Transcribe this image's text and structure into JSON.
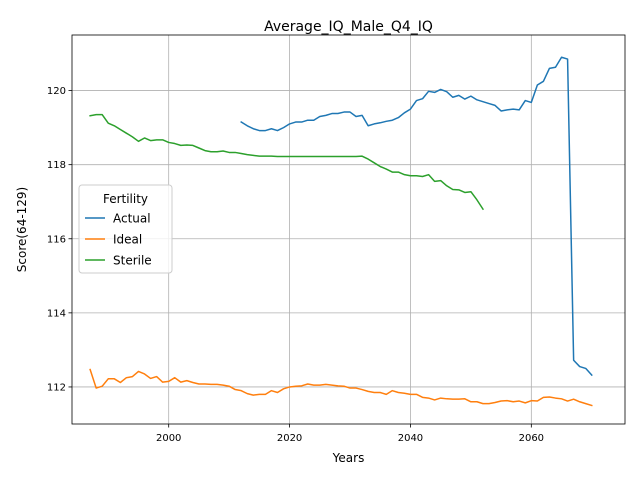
{
  "chart_data": {
    "type": "line",
    "title": "Average_IQ_Male_Q4_IQ",
    "xlabel": "Years",
    "ylabel": "Score(64-129)",
    "xlim": [
      1984,
      2075.5
    ],
    "ylim": [
      111.0,
      121.5
    ],
    "x_ticks": [
      2000,
      2020,
      2040,
      2060
    ],
    "y_ticks": [
      112,
      114,
      116,
      118,
      120
    ],
    "grid": true,
    "legend": {
      "title": "Fertility",
      "placement": "center-left"
    },
    "series": [
      {
        "name": "Actual",
        "color": "#1f77b4",
        "x": [
          2012,
          2013,
          2014,
          2015,
          2016,
          2017,
          2018,
          2019,
          2020,
          2021,
          2022,
          2023,
          2024,
          2025,
          2026,
          2027,
          2028,
          2029,
          2030,
          2031,
          2032,
          2033,
          2034,
          2035,
          2036,
          2037,
          2038,
          2039,
          2040,
          2041,
          2042,
          2043,
          2044,
          2045,
          2046,
          2047,
          2048,
          2049,
          2050,
          2051,
          2052,
          2053,
          2054,
          2055,
          2056,
          2057,
          2058,
          2059,
          2060,
          2061,
          2062,
          2063,
          2064,
          2065,
          2066,
          2067,
          2068,
          2069,
          2070
        ],
        "y": [
          119.15,
          119.05,
          118.97,
          118.92,
          118.92,
          118.97,
          118.92,
          119.0,
          119.1,
          119.15,
          119.15,
          119.2,
          119.2,
          119.3,
          119.33,
          119.38,
          119.38,
          119.42,
          119.42,
          119.3,
          119.33,
          119.05,
          119.1,
          119.13,
          119.17,
          119.2,
          119.27,
          119.4,
          119.5,
          119.73,
          119.78,
          119.98,
          119.95,
          120.03,
          119.97,
          119.82,
          119.87,
          119.77,
          119.85,
          119.75,
          119.7,
          119.65,
          119.6,
          119.45,
          119.48,
          119.5,
          119.48,
          119.73,
          119.68,
          120.15,
          120.25,
          120.6,
          120.63,
          120.9,
          120.85,
          112.72,
          112.55,
          112.5,
          112.32
        ]
      },
      {
        "name": "Ideal",
        "color": "#ff7f0e",
        "x": [
          1987,
          1988,
          1989,
          1990,
          1991,
          1992,
          1993,
          1994,
          1995,
          1996,
          1997,
          1998,
          1999,
          2000,
          2001,
          2002,
          2003,
          2004,
          2005,
          2006,
          2007,
          2008,
          2009,
          2010,
          2011,
          2012,
          2013,
          2014,
          2015,
          2016,
          2017,
          2018,
          2019,
          2020,
          2021,
          2022,
          2023,
          2024,
          2025,
          2026,
          2027,
          2028,
          2029,
          2030,
          2031,
          2032,
          2033,
          2034,
          2035,
          2036,
          2037,
          2038,
          2039,
          2040,
          2041,
          2042,
          2043,
          2044,
          2045,
          2046,
          2047,
          2048,
          2049,
          2050,
          2051,
          2052,
          2053,
          2054,
          2055,
          2056,
          2057,
          2058,
          2059,
          2060,
          2061,
          2062,
          2063,
          2064,
          2065,
          2066,
          2067,
          2068,
          2069,
          2070
        ],
        "y": [
          112.47,
          111.97,
          112.02,
          112.22,
          112.22,
          112.12,
          112.25,
          112.28,
          112.42,
          112.35,
          112.23,
          112.28,
          112.13,
          112.15,
          112.25,
          112.13,
          112.17,
          112.12,
          112.08,
          112.08,
          112.07,
          112.07,
          112.05,
          112.02,
          111.93,
          111.9,
          111.82,
          111.78,
          111.8,
          111.8,
          111.9,
          111.85,
          111.95,
          112.0,
          112.02,
          112.03,
          112.08,
          112.05,
          112.05,
          112.07,
          112.05,
          112.03,
          112.02,
          111.97,
          111.97,
          111.93,
          111.88,
          111.85,
          111.85,
          111.8,
          111.9,
          111.85,
          111.83,
          111.8,
          111.8,
          111.72,
          111.7,
          111.65,
          111.7,
          111.68,
          111.67,
          111.67,
          111.68,
          111.6,
          111.6,
          111.55,
          111.55,
          111.58,
          111.62,
          111.63,
          111.6,
          111.62,
          111.57,
          111.63,
          111.62,
          111.72,
          111.73,
          111.7,
          111.68,
          111.62,
          111.67,
          111.6,
          111.55,
          111.5
        ]
      },
      {
        "name": "Sterile",
        "color": "#2ca02c",
        "x": [
          1987,
          1988,
          1989,
          1990,
          1991,
          1992,
          1993,
          1994,
          1995,
          1996,
          1997,
          1998,
          1999,
          2000,
          2001,
          2002,
          2003,
          2004,
          2005,
          2006,
          2007,
          2008,
          2009,
          2010,
          2011,
          2012,
          2013,
          2014,
          2015,
          2016,
          2017,
          2018,
          2019,
          2020,
          2021,
          2022,
          2023,
          2024,
          2025,
          2026,
          2027,
          2028,
          2029,
          2030,
          2031,
          2032,
          2033,
          2034,
          2035,
          2036,
          2037,
          2038,
          2039,
          2040,
          2041,
          2042,
          2043,
          2044,
          2045,
          2046,
          2047,
          2048,
          2049,
          2050,
          2051,
          2052
        ],
        "y": [
          119.32,
          119.35,
          119.35,
          119.12,
          119.05,
          118.95,
          118.85,
          118.75,
          118.63,
          118.72,
          118.65,
          118.67,
          118.67,
          118.6,
          118.57,
          118.52,
          118.53,
          118.52,
          118.45,
          118.38,
          118.35,
          118.35,
          118.37,
          118.33,
          118.33,
          118.3,
          118.27,
          118.25,
          118.23,
          118.23,
          118.23,
          118.22,
          118.22,
          118.22,
          118.22,
          118.22,
          118.22,
          118.22,
          118.22,
          118.22,
          118.22,
          118.22,
          118.22,
          118.22,
          118.22,
          118.23,
          118.15,
          118.05,
          117.95,
          117.88,
          117.8,
          117.8,
          117.73,
          117.7,
          117.7,
          117.68,
          117.73,
          117.55,
          117.57,
          117.43,
          117.33,
          117.32,
          117.25,
          117.27,
          117.05,
          116.8
        ]
      }
    ]
  }
}
